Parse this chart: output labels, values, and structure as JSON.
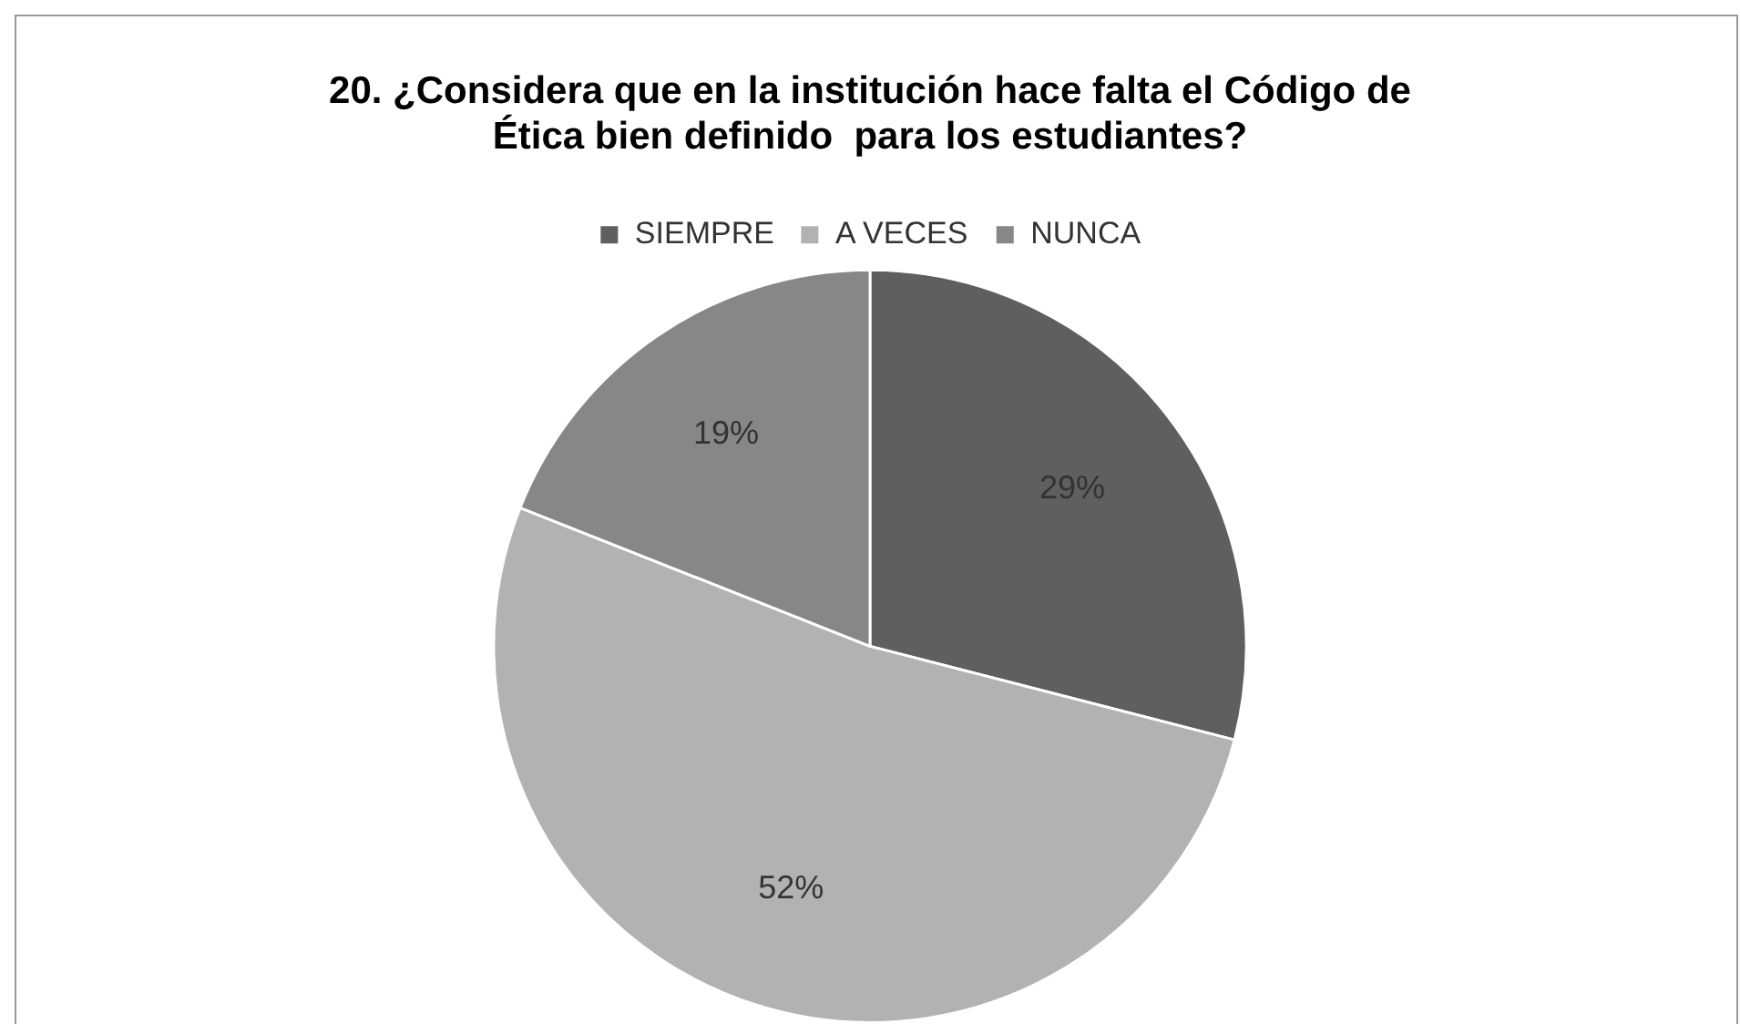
{
  "chart_data": {
    "type": "pie",
    "title": "20. ¿Considera que en la institución hace falta el Código de Ética bien definido  para los estudiantes?",
    "categories": [
      "SIEMPRE",
      "A VECES",
      "NUNCA"
    ],
    "values": [
      29,
      52,
      19
    ],
    "colors": [
      "#5f5f5f",
      "#b2b2b2",
      "#878787"
    ],
    "legend": "top",
    "data_labels": true,
    "value_labels": [
      "29%",
      "52%",
      "19%"
    ]
  }
}
